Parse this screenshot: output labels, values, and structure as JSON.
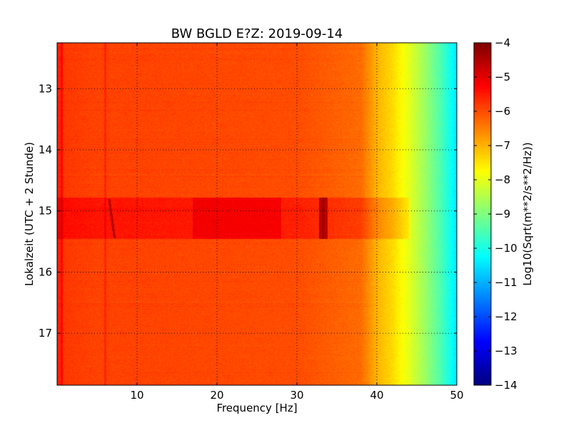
{
  "chart_data": {
    "type": "heatmap",
    "title": "BW BGLD E?Z: 2019-09-14",
    "xlabel": "Frequency [Hz]",
    "ylabel": "Lokalzeit (UTC + 2 Stunde)",
    "xlim": [
      0,
      50
    ],
    "ylim": [
      12.25,
      17.85
    ],
    "y_inverted": true,
    "x_ticks": [
      10,
      20,
      30,
      40,
      50
    ],
    "x_tick_labels": [
      "10",
      "20",
      "30",
      "40",
      "50"
    ],
    "y_ticks": [
      13,
      14,
      15,
      16,
      17
    ],
    "y_tick_labels": [
      "13",
      "14",
      "15",
      "16",
      "17"
    ],
    "grid": true,
    "colormap": "jet",
    "value_range": [
      -14,
      -4
    ],
    "colorbar": {
      "label": "Log10(Sqrt(m**2/s**2/Hz))",
      "ticks": [
        -4,
        -5,
        -6,
        -7,
        -8,
        -9,
        -10,
        -11,
        -12,
        -13,
        -14
      ],
      "tick_labels": [
        "−4",
        "−5",
        "−6",
        "−7",
        "−8",
        "−9",
        "−10",
        "−11",
        "−12",
        "−13",
        "−14"
      ]
    },
    "spectral_profile": {
      "frequency_hz": [
        0,
        1,
        5,
        10,
        20,
        30,
        38,
        40,
        42,
        44,
        46,
        48,
        50
      ],
      "level": [
        -5.5,
        -5.8,
        -5.9,
        -5.9,
        -5.95,
        -6.0,
        -6.3,
        -7.0,
        -7.4,
        -8.0,
        -8.7,
        -9.5,
        -10.5
      ]
    },
    "features": [
      {
        "type": "band",
        "t_start": 14.78,
        "t_end": 15.46,
        "f_start": 0,
        "f_end": 44,
        "delta": 0.45
      },
      {
        "type": "hotspot",
        "t_start": 14.78,
        "t_end": 15.46,
        "f_start": 17,
        "f_end": 28,
        "delta": 0.35
      },
      {
        "type": "hotspot",
        "t_start": 14.78,
        "t_end": 15.46,
        "f_start": 32.8,
        "f_end": 33.8,
        "delta": 1.1
      },
      {
        "type": "line",
        "f": 6.0,
        "t_start": 12.25,
        "t_end": 17.85,
        "delta": 0.3
      },
      {
        "type": "line",
        "f": 33.3,
        "t_start": 14.78,
        "t_end": 15.46,
        "delta": 0.8
      },
      {
        "type": "sweep",
        "f_start": 6.5,
        "f_end": 7.2,
        "t_start": 14.8,
        "t_end": 15.45,
        "delta": 0.9
      },
      {
        "type": "line",
        "f": 0.6,
        "t_start": 12.25,
        "t_end": 17.85,
        "delta": 0.4
      }
    ]
  }
}
